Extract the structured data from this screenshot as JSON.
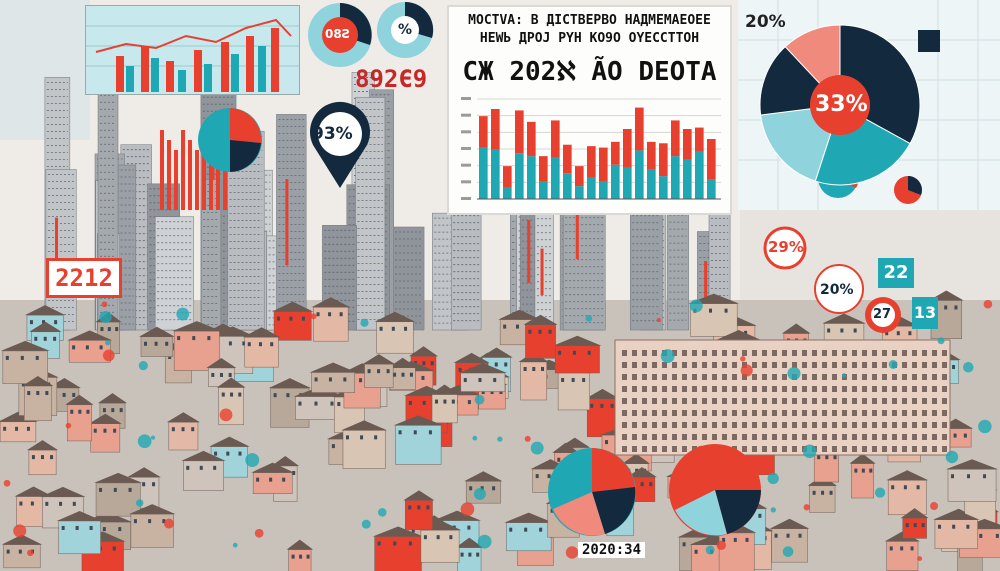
{
  "title": {
    "line1": "MOCTVA: B ДICTBEPBO HAДMEMAEOEE",
    "line2": "HEWЬ ДPOJ PYH KO9O OYECCTTOH",
    "line3": "CЖ 202ℵ ÃO DEOTA"
  },
  "labels": {
    "top_number": "892Є9",
    "left_number": "2212",
    "pin_percent": "93%",
    "pie_top_left": "08Ƨ",
    "pie_top_mid": "%",
    "top_right_percent": "20%",
    "big_pie_percent": "33%",
    "right_badge_1": "29%",
    "right_badge_2": "22",
    "right_badge_3": "20%",
    "right_badge_4": "27",
    "right_badge_5": "13",
    "bottom_year": "2020:34"
  },
  "colors": {
    "red": "#e8402e",
    "teal": "#1fa7b4",
    "navy": "#13293d",
    "pink": "#f08a7c",
    "sky": "#8fd3dd"
  },
  "chart_data": [
    {
      "type": "bar",
      "title": "",
      "series": [
        {
          "name": "",
          "values": [
            22,
            28,
            15,
            30,
            24,
            18,
            26,
            20,
            14,
            22,
            24,
            16,
            27,
            30,
            19,
            23,
            25,
            21,
            17,
            28
          ]
        },
        {
          "name": "",
          "values": [
            36,
            35,
            8,
            32,
            30,
            12,
            29,
            18,
            9,
            15,
            12,
            24,
            22,
            34,
            21,
            16,
            30,
            28,
            33,
            14
          ]
        }
      ]
    },
    {
      "type": "pie",
      "title": "",
      "values": [
        33,
        22,
        18,
        15,
        12
      ]
    }
  ]
}
